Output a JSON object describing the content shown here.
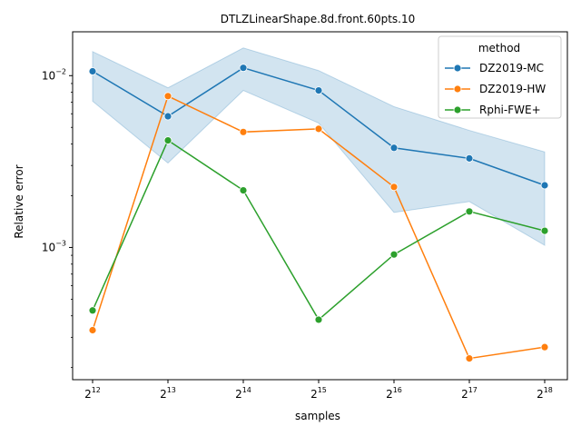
{
  "chart_data": {
    "type": "line",
    "title": "DTLZLinearShape.8d.front.60pts.10",
    "xlabel": "samples",
    "ylabel": "Relative error",
    "x_scale": "log2",
    "y_scale": "log10",
    "x": [
      4096,
      8192,
      16384,
      32768,
      65536,
      131072,
      262144
    ],
    "x_tick_labels": [
      {
        "base": "2",
        "exp": "12"
      },
      {
        "base": "2",
        "exp": "13"
      },
      {
        "base": "2",
        "exp": "14"
      },
      {
        "base": "2",
        "exp": "15"
      },
      {
        "base": "2",
        "exp": "16"
      },
      {
        "base": "2",
        "exp": "17"
      },
      {
        "base": "2",
        "exp": "18"
      }
    ],
    "y_tick_labels": [
      {
        "value": 0.001,
        "base": "10",
        "exp": "−3"
      },
      {
        "value": 0.01,
        "base": "10",
        "exp": "−2"
      }
    ],
    "ylim": [
      0.00017,
      0.018
    ],
    "legend": {
      "title": "method",
      "placement": "top-right"
    },
    "series": [
      {
        "name": "DZ2019-MC",
        "color": "#1f77b4",
        "values": [
          0.0106,
          0.0058,
          0.0111,
          0.0082,
          0.0038,
          0.0033,
          0.0023
        ],
        "ci_lower": [
          0.0071,
          0.0031,
          0.0082,
          0.0053,
          0.0016,
          0.00185,
          0.00103
        ],
        "ci_upper": [
          0.0138,
          0.0085,
          0.0145,
          0.0107,
          0.0066,
          0.0048,
          0.0036
        ],
        "ci_color": "#1f77b4"
      },
      {
        "name": "DZ2019-HW",
        "color": "#ff7f0e",
        "values": [
          0.00033,
          0.0076,
          0.0047,
          0.0049,
          0.00225,
          0.000226,
          0.000263
        ]
      },
      {
        "name": "Rphi-FWE+",
        "color": "#2ca02c",
        "values": [
          0.00043,
          0.0042,
          0.00215,
          0.00038,
          0.00091,
          0.00162,
          0.00125
        ]
      }
    ],
    "grid": false
  }
}
